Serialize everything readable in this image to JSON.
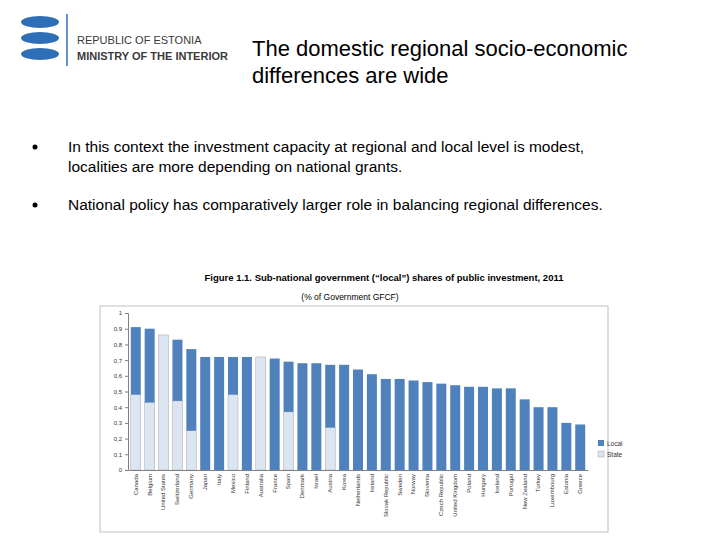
{
  "slide": {
    "logo_lines": [
      "REPUBLIC OF ESTONIA",
      "MINISTRY OF THE INTERIOR"
    ],
    "title_lines": [
      "The domestic regional socio-economic",
      "differences are wide"
    ],
    "bullets": [
      [
        "In this context the investment capacity at regional and local level is modest,",
        "localities are more depending on national grants."
      ],
      [
        "National policy has comparatively larger role in balancing regional differences."
      ]
    ]
  },
  "chart_data": {
    "type": "bar",
    "title": "Figure 1.1. Sub-national government (“local”) shares of public investment, 2011",
    "subtitle": "(% of Government GFCF)",
    "stacked": true,
    "grid": false,
    "legend": "right",
    "categories": [
      "Canada",
      "Belgium",
      "United States",
      "Switzerland",
      "Germany",
      "Japan",
      "Italy",
      "Mexico",
      "Finland",
      "Australia",
      "France",
      "Spain",
      "Denmark",
      "Israel",
      "Austria",
      "Korea",
      "Netherlands",
      "Ireland",
      "Slovak Republic",
      "Sweden",
      "Norway",
      "Slovenia",
      "Czech Republic",
      "United Kingdom",
      "Poland",
      "Hungary",
      "Iceland",
      "Portugal",
      "New Zealand",
      "Turkey",
      "Luxembourg",
      "Estonia",
      "Greece"
    ],
    "series": [
      {
        "name": "Local",
        "color": "#4f81bd",
        "values": [
          0.43,
          0.47,
          0,
          0.39,
          0.52,
          0.72,
          0.72,
          0.24,
          0.72,
          0,
          0.71,
          0.32,
          0.68,
          0.68,
          0.4,
          0.67,
          0.64,
          0.61,
          0.58,
          0.58,
          0.57,
          0.56,
          0.55,
          0.54,
          0.53,
          0.53,
          0.52,
          0.52,
          0.45,
          0.4,
          0.4,
          0.3,
          0.29
        ]
      },
      {
        "name": "State",
        "color": "#dce6f2",
        "values": [
          0.48,
          0.43,
          0.86,
          0.44,
          0.25,
          0,
          0,
          0.48,
          0,
          0.72,
          0,
          0.37,
          0,
          0,
          0.27,
          0,
          0,
          0,
          0,
          0,
          0,
          0,
          0,
          0,
          0,
          0,
          0,
          0,
          0,
          0,
          0,
          0,
          0
        ]
      }
    ],
    "ylim": [
      0,
      1
    ],
    "yticks": [
      0,
      {
        "value": 0.1,
        "label": "0,1"
      },
      {
        "value": 0.2,
        "label": "0,2"
      },
      {
        "value": 0.3,
        "label": "0,3"
      },
      {
        "value": 0.4,
        "label": "0,4"
      },
      {
        "value": 0.5,
        "label": "0,5"
      },
      {
        "value": 0.6,
        "label": "0,6"
      },
      {
        "value": 0.7,
        "label": "0,7"
      },
      {
        "value": 0.8,
        "label": "0,8"
      },
      {
        "value": 0.9,
        "label": "0,9"
      },
      1
    ]
  }
}
